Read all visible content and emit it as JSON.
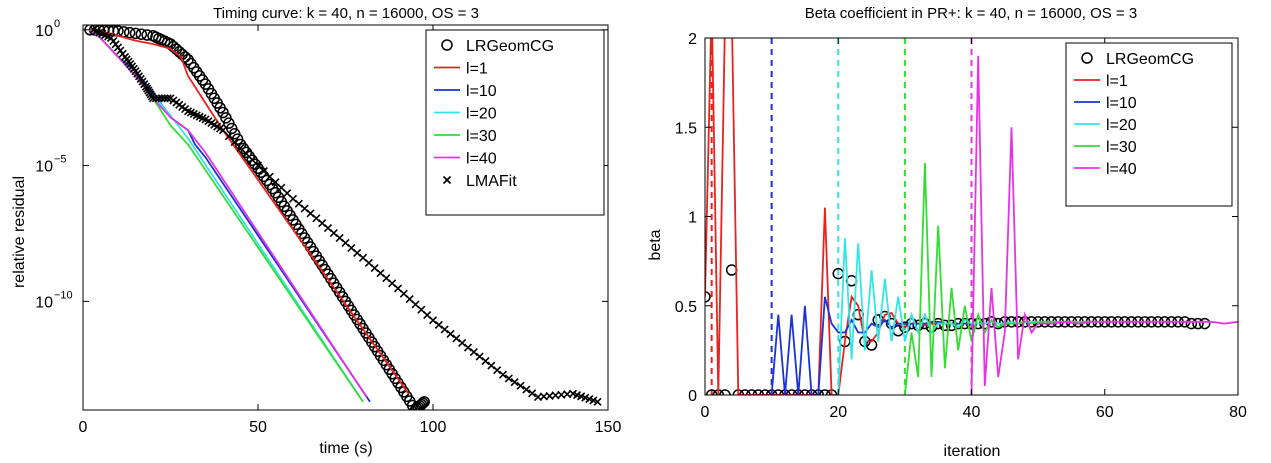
{
  "colors": {
    "LRGeomCG": "#000000",
    "l1": "#e8231f",
    "l10": "#1a33d6",
    "l20": "#33e6e6",
    "l30": "#33dd33",
    "l40": "#e633e6",
    "LMAFit": "#000000"
  },
  "chart_data": [
    {
      "type": "line",
      "title": "Timing curve: k = 40, n = 16000, OS = 3",
      "xlabel": "time (s)",
      "ylabel": "relative residual",
      "yscale": "log",
      "xlim": [
        0,
        150
      ],
      "ylim": [
        1e-14,
        1.5
      ],
      "xticks": [
        0,
        50,
        100,
        150
      ],
      "xtick_labels": [
        "0",
        "50",
        "100",
        "150"
      ],
      "yticks": [
        1,
        1e-05,
        1e-10
      ],
      "ytick_labels": [
        {
          "base": "10",
          "exp": "0"
        },
        {
          "base": "10",
          "exp": "−5"
        },
        {
          "base": "10",
          "exp": "−10"
        }
      ],
      "grid": false,
      "legend_position": "top-right",
      "series": [
        {
          "name": "LRGeomCG",
          "key": "LRGeomCG",
          "marker": "o",
          "line": false,
          "x": [
            2,
            10,
            20,
            25,
            30,
            35,
            40,
            45,
            50,
            55,
            60,
            65,
            70,
            75,
            80,
            85,
            90,
            95,
            97.5
          ],
          "y": [
            1,
            0.9,
            0.6,
            0.3,
            0.08,
            0.01,
            0.0009,
            6e-05,
            8e-06,
            1e-06,
            1e-07,
            1e-08,
            1e-09,
            1e-10,
            1e-11,
            1e-12,
            1e-13,
            1e-14,
            2e-14
          ]
        },
        {
          "name": "l=1",
          "key": "l1",
          "marker": "none",
          "line": true,
          "x": [
            2,
            5,
            10,
            15,
            20,
            25,
            28,
            30,
            35,
            40,
            93
          ],
          "y": [
            1,
            0.9,
            0.6,
            0.4,
            0.3,
            0.2,
            0.1,
            0.02,
            0.002,
            0.0002,
            4e-14
          ]
        },
        {
          "name": "l=10",
          "key": "l10",
          "marker": "none",
          "line": true,
          "x": [
            2,
            5,
            10,
            15,
            20,
            25,
            30,
            32,
            35,
            82
          ],
          "y": [
            1,
            0.5,
            0.1,
            0.03,
            0.005,
            0.0006,
            0.0002,
            6e-05,
            2e-05,
            2e-14
          ]
        },
        {
          "name": "l=20",
          "key": "l20",
          "marker": "none",
          "line": true,
          "x": [
            2,
            5,
            10,
            15,
            20,
            25,
            30,
            80
          ],
          "y": [
            1,
            0.5,
            0.1,
            0.02,
            0.004,
            0.0007,
            0.0001,
            2e-14
          ]
        },
        {
          "name": "l=30",
          "key": "l30",
          "marker": "none",
          "line": true,
          "x": [
            2,
            5,
            10,
            15,
            20,
            25,
            30,
            80
          ],
          "y": [
            1,
            0.5,
            0.1,
            0.02,
            0.003,
            0.0003,
            6e-05,
            2e-14
          ]
        },
        {
          "name": "l=40",
          "key": "l40",
          "marker": "none",
          "line": true,
          "x": [
            2,
            5,
            10,
            15,
            20,
            25,
            30,
            35,
            81
          ],
          "y": [
            1,
            0.5,
            0.1,
            0.02,
            0.003,
            0.0006,
            0.0002,
            3e-05,
            3e-14
          ]
        },
        {
          "name": "LMAFit",
          "key": "LMAFit",
          "marker": "x",
          "line": false,
          "x": [
            3,
            8,
            12,
            15,
            18,
            20,
            25,
            30,
            35,
            40,
            50,
            60,
            70,
            80,
            90,
            100,
            110,
            120,
            130,
            140,
            147
          ],
          "y": [
            1,
            0.5,
            0.1,
            0.03,
            0.008,
            0.003,
            0.003,
            0.001,
            0.0005,
            0.0002,
            1e-05,
            6e-07,
            5e-08,
            4e-09,
            3e-10,
            2e-11,
            2e-12,
            2e-13,
            3e-14,
            4e-14,
            2e-14
          ]
        }
      ]
    },
    {
      "type": "line",
      "title": "Beta coefficient in PR+: k = 40, n = 16000, OS = 3",
      "xlabel": "iteration",
      "ylabel": "beta",
      "xlim": [
        0,
        80
      ],
      "ylim": [
        0,
        2
      ],
      "xticks": [
        0,
        20,
        40,
        60,
        80
      ],
      "xtick_labels": [
        "0",
        "20",
        "40",
        "60",
        "80"
      ],
      "yticks": [
        0,
        0.5,
        1,
        1.5,
        2
      ],
      "ytick_labels": [
        "0",
        "0.5",
        "1",
        "1.5",
        "2"
      ],
      "grid": false,
      "legend_position": "top-right",
      "vlines": [
        {
          "x": 1,
          "key": "l1"
        },
        {
          "x": 10,
          "key": "l10"
        },
        {
          "x": 20,
          "key": "l20"
        },
        {
          "x": 30,
          "key": "l30"
        },
        {
          "x": 40,
          "key": "l40"
        }
      ],
      "series": [
        {
          "name": "LRGeomCG",
          "key": "LRGeomCG",
          "marker": "o",
          "line": false,
          "x": [
            0,
            1,
            2,
            3,
            4,
            5,
            6,
            7,
            8,
            9,
            10,
            11,
            12,
            13,
            14,
            15,
            16,
            17,
            18,
            19,
            20,
            21,
            22,
            23,
            24,
            25,
            26,
            27,
            28,
            29,
            30,
            31,
            32,
            33,
            34,
            35,
            36,
            37,
            38,
            39,
            40,
            41,
            42,
            43,
            44,
            45,
            46,
            47,
            48,
            49,
            50,
            51,
            52,
            53,
            54,
            55,
            56,
            57,
            58,
            59,
            60,
            61,
            62,
            63,
            64,
            65,
            66,
            67,
            68,
            69,
            70,
            71,
            72,
            73,
            74,
            75
          ],
          "y": [
            0.55,
            0,
            0,
            0,
            0.7,
            0,
            0,
            0,
            0,
            0,
            0,
            0,
            0,
            0,
            0,
            0,
            0,
            0,
            0,
            0,
            0.68,
            0.3,
            0.64,
            0.45,
            0.3,
            0.28,
            0.42,
            0.44,
            0.4,
            0.36,
            0.38,
            0.4,
            0.39,
            0.4,
            0.38,
            0.4,
            0.39,
            0.39,
            0.4,
            0.4,
            0.4,
            0.4,
            0.4,
            0.41,
            0.4,
            0.41,
            0.41,
            0.41,
            0.41,
            0.41,
            0.41,
            0.41,
            0.41,
            0.41,
            0.41,
            0.41,
            0.41,
            0.41,
            0.41,
            0.41,
            0.41,
            0.41,
            0.41,
            0.41,
            0.41,
            0.41,
            0.41,
            0.41,
            0.41,
            0.41,
            0.41,
            0.41,
            0.41,
            0.4,
            0.4,
            0.4
          ]
        },
        {
          "name": "l=1",
          "key": "l1",
          "marker": "none",
          "line": true,
          "x": [
            0,
            1,
            2,
            3,
            4,
            5,
            6,
            7,
            8,
            9,
            10,
            11,
            12,
            13,
            14,
            15,
            16,
            17,
            18,
            19,
            20,
            21,
            22,
            23,
            24,
            25,
            26,
            27,
            28,
            29,
            30,
            31,
            32,
            33,
            34,
            35
          ],
          "y": [
            0.55,
            2.2,
            0,
            2.1,
            2.2,
            0,
            0,
            0,
            0,
            0,
            0,
            0,
            0,
            0,
            0,
            0,
            0,
            0,
            1.05,
            0,
            0,
            0.3,
            0.55,
            0.5,
            0.3,
            0.3,
            0.35,
            0.45,
            0.46,
            0.4,
            0.38,
            0.4,
            0.4,
            0.39,
            0.4,
            0.4
          ]
        },
        {
          "name": "l=10",
          "key": "l10",
          "marker": "none",
          "line": true,
          "x": [
            10,
            11,
            12,
            13,
            14,
            15,
            16,
            17,
            18,
            19,
            20,
            21,
            22,
            23,
            24,
            25,
            26,
            27,
            28,
            29,
            30,
            31,
            32,
            33,
            34,
            35,
            36,
            37,
            38,
            39,
            40
          ],
          "y": [
            0,
            0.45,
            0,
            0.45,
            0,
            0.5,
            0,
            0,
            0.55,
            0.4,
            0.35,
            0.35,
            0.42,
            0.35,
            0.35,
            0.4,
            0.38,
            0.42,
            0.38,
            0.4,
            0.4,
            0.4,
            0.4,
            0.4,
            0.41,
            0.41,
            0.4,
            0.4,
            0.4,
            0.4,
            0.4
          ]
        },
        {
          "name": "l=20",
          "key": "l20",
          "marker": "none",
          "line": true,
          "x": [
            20,
            21,
            22,
            23,
            24,
            25,
            26,
            27,
            28,
            29,
            30,
            31,
            32,
            33,
            34,
            35,
            36,
            37,
            38,
            39,
            40,
            41,
            42,
            43,
            44,
            45,
            46,
            47,
            48,
            49,
            50
          ],
          "y": [
            0,
            0.88,
            0.2,
            0.85,
            0.25,
            0.7,
            0.3,
            0.65,
            0.3,
            0.55,
            0.3,
            0.45,
            0.35,
            0.45,
            0.35,
            0.4,
            0.4,
            0.4,
            0.38,
            0.42,
            0.4,
            0.4,
            0.4,
            0.41,
            0.4,
            0.4,
            0.41,
            0.4,
            0.41,
            0.41,
            0.41
          ]
        },
        {
          "name": "l=30",
          "key": "l30",
          "marker": "none",
          "line": true,
          "x": [
            30,
            31,
            32,
            33,
            34,
            35,
            36,
            37,
            38,
            39,
            40,
            41,
            42,
            43,
            44,
            45,
            46,
            47,
            48,
            49,
            50,
            51,
            52,
            53,
            54,
            55,
            56,
            57,
            58,
            59,
            60
          ],
          "y": [
            0,
            0.35,
            0.1,
            1.3,
            0.1,
            0.95,
            0.15,
            0.6,
            0.25,
            0.5,
            0.3,
            0.45,
            0.35,
            0.42,
            0.38,
            0.4,
            0.4,
            0.4,
            0.41,
            0.4,
            0.41,
            0.41,
            0.41,
            0.41,
            0.41,
            0.41,
            0.41,
            0.41,
            0.41,
            0.41,
            0.41
          ]
        },
        {
          "name": "l=40",
          "key": "l40",
          "marker": "none",
          "line": true,
          "x": [
            40,
            41,
            42,
            43,
            44,
            45,
            46,
            47,
            48,
            49,
            50,
            52,
            54,
            56,
            58,
            60,
            62,
            64,
            66,
            68,
            70,
            72,
            74,
            76,
            78,
            80
          ],
          "y": [
            0,
            1.9,
            0.05,
            0.6,
            0.1,
            0.35,
            1.5,
            0.2,
            0.45,
            0.35,
            0.4,
            0.4,
            0.41,
            0.4,
            0.41,
            0.41,
            0.41,
            0.41,
            0.41,
            0.41,
            0.41,
            0.41,
            0.41,
            0.41,
            0.4,
            0.41
          ]
        }
      ]
    }
  ]
}
